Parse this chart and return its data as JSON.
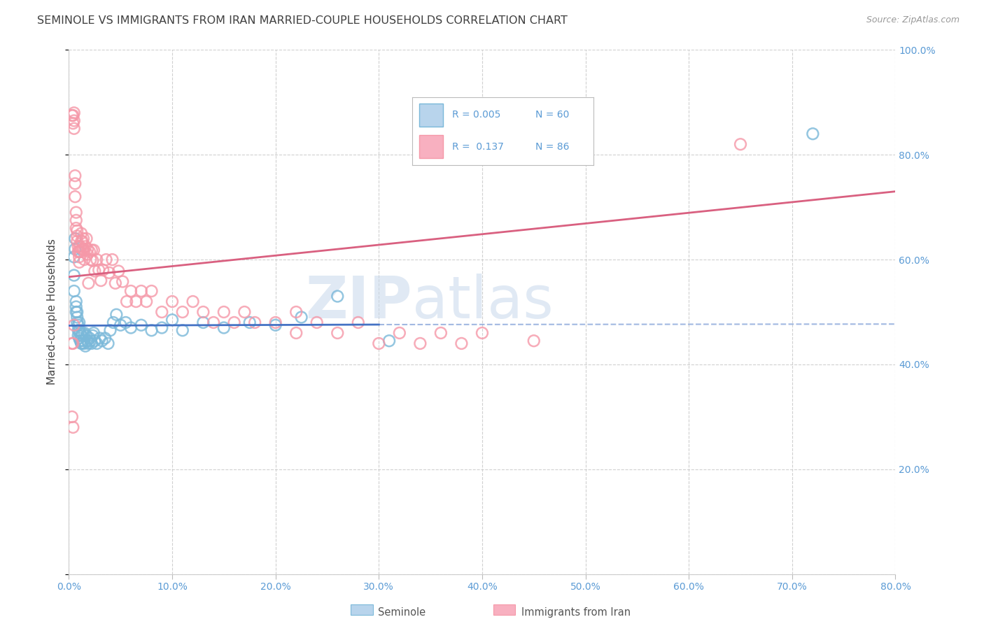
{
  "title": "SEMINOLE VS IMMIGRANTS FROM IRAN MARRIED-COUPLE HOUSEHOLDS CORRELATION CHART",
  "source": "Source: ZipAtlas.com",
  "ylabel_label": "Married-couple Households",
  "xlim": [
    0.0,
    0.8
  ],
  "ylim": [
    0.0,
    1.0
  ],
  "xticks": [
    0.0,
    0.1,
    0.2,
    0.3,
    0.4,
    0.5,
    0.6,
    0.7,
    0.8
  ],
  "xticklabels": [
    "0.0%",
    "10.0%",
    "20.0%",
    "30.0%",
    "40.0%",
    "50.0%",
    "60.0%",
    "70.0%",
    "80.0%"
  ],
  "yticks": [
    0.0,
    0.2,
    0.4,
    0.6,
    0.8,
    1.0
  ],
  "yticklabels": [
    "",
    "20.0%",
    "40.0%",
    "60.0%",
    "80.0%",
    "100.0%"
  ],
  "series1_name": "Seminole",
  "series2_name": "Immigrants from Iran",
  "series1_color": "#7ab8d9",
  "series2_color": "#f598a8",
  "trend1_color": "#4472c4",
  "trend2_color": "#d96080",
  "tick_color": "#5B9BD5",
  "grid_color": "#d0d0d0",
  "title_color": "#404040",
  "source_color": "#999999",
  "watermark_color": "#c8d8eb",
  "legend_box_color": "#aaaaaa",
  "legend_text_color": "#5B9BD5",
  "sem_x": [
    0.005,
    0.005,
    0.005,
    0.006,
    0.006,
    0.007,
    0.007,
    0.007,
    0.008,
    0.008,
    0.008,
    0.009,
    0.009,
    0.009,
    0.01,
    0.01,
    0.01,
    0.011,
    0.011,
    0.012,
    0.012,
    0.013,
    0.013,
    0.014,
    0.015,
    0.015,
    0.016,
    0.017,
    0.018,
    0.019,
    0.02,
    0.021,
    0.022,
    0.023,
    0.024,
    0.025,
    0.027,
    0.03,
    0.032,
    0.035,
    0.038,
    0.04,
    0.043,
    0.046,
    0.05,
    0.055,
    0.06,
    0.07,
    0.08,
    0.09,
    0.1,
    0.11,
    0.13,
    0.15,
    0.175,
    0.2,
    0.225,
    0.26,
    0.31,
    0.72
  ],
  "sem_y": [
    0.54,
    0.57,
    0.605,
    0.62,
    0.64,
    0.5,
    0.51,
    0.52,
    0.48,
    0.49,
    0.5,
    0.455,
    0.465,
    0.475,
    0.45,
    0.465,
    0.48,
    0.445,
    0.46,
    0.44,
    0.455,
    0.44,
    0.46,
    0.445,
    0.44,
    0.46,
    0.435,
    0.455,
    0.445,
    0.44,
    0.45,
    0.445,
    0.44,
    0.455,
    0.46,
    0.445,
    0.44,
    0.45,
    0.445,
    0.45,
    0.44,
    0.465,
    0.48,
    0.495,
    0.475,
    0.48,
    0.47,
    0.475,
    0.465,
    0.47,
    0.485,
    0.465,
    0.48,
    0.47,
    0.48,
    0.475,
    0.49,
    0.53,
    0.445,
    0.84
  ],
  "iran_x": [
    0.003,
    0.004,
    0.004,
    0.005,
    0.005,
    0.005,
    0.006,
    0.006,
    0.006,
    0.007,
    0.007,
    0.007,
    0.008,
    0.008,
    0.008,
    0.009,
    0.009,
    0.01,
    0.01,
    0.01,
    0.011,
    0.011,
    0.012,
    0.012,
    0.013,
    0.013,
    0.014,
    0.014,
    0.015,
    0.015,
    0.016,
    0.017,
    0.018,
    0.018,
    0.019,
    0.02,
    0.021,
    0.022,
    0.023,
    0.024,
    0.025,
    0.027,
    0.029,
    0.031,
    0.033,
    0.036,
    0.039,
    0.042,
    0.045,
    0.048,
    0.052,
    0.056,
    0.06,
    0.065,
    0.07,
    0.075,
    0.08,
    0.09,
    0.1,
    0.11,
    0.12,
    0.13,
    0.14,
    0.15,
    0.16,
    0.17,
    0.18,
    0.2,
    0.22,
    0.24,
    0.26,
    0.28,
    0.3,
    0.32,
    0.34,
    0.36,
    0.38,
    0.4,
    0.45,
    0.65,
    0.003,
    0.003,
    0.004,
    0.004,
    0.005,
    0.22
  ],
  "iran_y": [
    0.875,
    0.86,
    0.875,
    0.88,
    0.865,
    0.85,
    0.76,
    0.745,
    0.72,
    0.69,
    0.675,
    0.66,
    0.655,
    0.645,
    0.635,
    0.625,
    0.615,
    0.615,
    0.605,
    0.595,
    0.615,
    0.625,
    0.635,
    0.65,
    0.62,
    0.635,
    0.62,
    0.64,
    0.618,
    0.6,
    0.625,
    0.64,
    0.62,
    0.61,
    0.555,
    0.615,
    0.6,
    0.618,
    0.598,
    0.618,
    0.578,
    0.6,
    0.58,
    0.56,
    0.58,
    0.6,
    0.575,
    0.6,
    0.555,
    0.578,
    0.558,
    0.52,
    0.54,
    0.52,
    0.54,
    0.52,
    0.54,
    0.5,
    0.52,
    0.5,
    0.52,
    0.5,
    0.48,
    0.5,
    0.48,
    0.5,
    0.48,
    0.48,
    0.46,
    0.48,
    0.46,
    0.48,
    0.44,
    0.46,
    0.44,
    0.46,
    0.44,
    0.46,
    0.445,
    0.82,
    0.44,
    0.3,
    0.44,
    0.28,
    0.475,
    0.5
  ],
  "sem_trend_x0": 0.0,
  "sem_trend_x1": 0.3,
  "sem_trend_x1_dash": 0.8,
  "sem_trend_y0": 0.474,
  "sem_trend_y1": 0.476,
  "sem_trend_y1_dash": 0.477,
  "iran_trend_x0": 0.0,
  "iran_trend_x1": 0.8,
  "iran_trend_y0": 0.567,
  "iran_trend_y1": 0.73
}
